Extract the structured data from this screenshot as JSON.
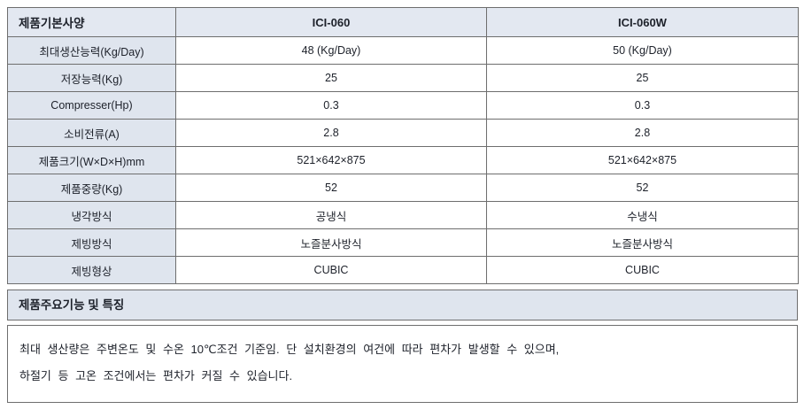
{
  "spec_table": {
    "corner_label": "제품기본사양",
    "columns": [
      "ICI-060",
      "ICI-060W"
    ],
    "rows": [
      {
        "label": "최대생산능력(Kg/Day)",
        "ici060": "48 (Kg/Day)",
        "ici060w": "50 (Kg/Day)"
      },
      {
        "label": "저장능력(Kg)",
        "ici060": "25",
        "ici060w": "25"
      },
      {
        "label": "Compresser(Hp)",
        "ici060": "0.3",
        "ici060w": "0.3"
      },
      {
        "label": "소비전류(A)",
        "ici060": "2.8",
        "ici060w": "2.8"
      },
      {
        "label": "제품크기(W×D×H)mm",
        "ici060": "521×642×875",
        "ici060w": "521×642×875"
      },
      {
        "label": "제품중량(Kg)",
        "ici060": "52",
        "ici060w": "52"
      },
      {
        "label": "냉각방식",
        "ici060": "공냉식",
        "ici060w": "수냉식"
      },
      {
        "label": "제빙방식",
        "ici060": "노즐분사방식",
        "ici060w": "노즐분사방식"
      },
      {
        "label": "제빙형상",
        "ici060": "CUBIC",
        "ici060w": "CUBIC"
      }
    ]
  },
  "features_section": {
    "title": "제품주요기능 및 특징",
    "note_line1": "최대 생산량은 주변온도 및 수온 10℃조건 기준임. 단 설치환경의 여건에 따라 편차가 발생할 수 있으며,",
    "note_line2": "하절기 등 고온 조건에서는 편차가 커질 수 있습니다."
  },
  "colors": {
    "header_bg": "#e3e8f1",
    "label_bg": "#dfe5ee",
    "border": "#6e6e6e",
    "text": "#1d212a",
    "page_bg": "#ffffff"
  }
}
